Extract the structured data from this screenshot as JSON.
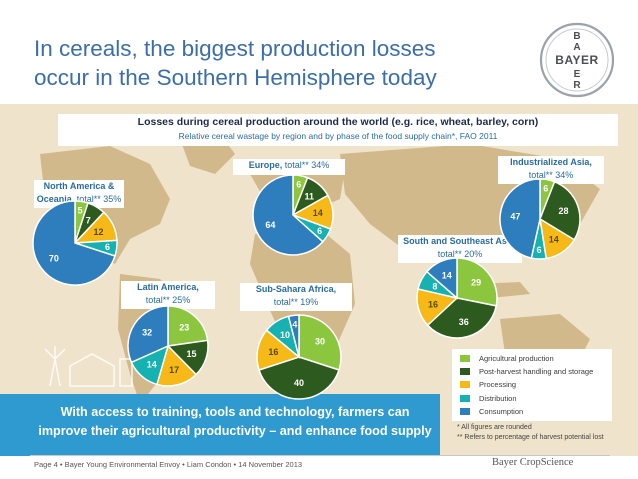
{
  "slide": {
    "title_line1": "In cereals, the biggest production losses",
    "title_line2": "occur in the Southern Hemisphere today",
    "logo_letters": [
      "B",
      "A",
      "Y",
      "E",
      "R"
    ],
    "logo_text": "BAYER",
    "footer_left": "Page 4 • Bayer Young Environmental Envoy • Liam Condon • 14 November 2013",
    "footer_right": "Bayer CropScience",
    "banner_line1": "With access to training, tools and technology, farmers can",
    "banner_line2": "improve their agricultural productivity – and enhance food supply",
    "notes": [
      "* All figures are rounded",
      "** Refers to percentage of harvest potential lost"
    ],
    "colors": {
      "title": "#3c6ea8",
      "map_bg": "#efe3cb",
      "land": "#d2b98c",
      "banner": "#2e9ad0"
    }
  },
  "chart_data": {
    "type": "pie",
    "title": "Losses during cereal production around the world (e.g. rice, wheat, barley, corn)",
    "subtitle": "Relative cereal wastage by region and by phase of the food supply chain*, FAO 2011",
    "legend_position": "bottom-right",
    "categories": [
      "Agricultural production",
      "Post-harvest handling and storage",
      "Processing",
      "Distribution",
      "Consumption"
    ],
    "category_colors": [
      "#8cc63f",
      "#2d5a1e",
      "#f6b918",
      "#16b1b1",
      "#2e7ebd"
    ],
    "regions": [
      {
        "id": "north-america",
        "name": "North America &",
        "name2": "Oceania,",
        "total": "total** 35%",
        "values": [
          5,
          7,
          12,
          6,
          70
        ]
      },
      {
        "id": "europe",
        "name": "Europe,",
        "name2": "",
        "total": "total** 34%",
        "values": [
          6,
          11,
          14,
          6,
          64
        ]
      },
      {
        "id": "industrialized-asia",
        "name": "Industrialized Asia,",
        "name2": "",
        "total": "total** 34%",
        "values": [
          6,
          28,
          14,
          6,
          47
        ]
      },
      {
        "id": "latin-america",
        "name": "Latin America,",
        "name2": "",
        "total": "total** 25%",
        "values": [
          23,
          15,
          17,
          14,
          32
        ]
      },
      {
        "id": "sub-sahara-africa",
        "name": "Sub-Sahara Africa,",
        "name2": "",
        "total": "total** 19%",
        "values": [
          30,
          40,
          16,
          10,
          4
        ]
      },
      {
        "id": "south-southeast-asia",
        "name": "South and Southeast Asia,",
        "name2": "",
        "total": "total** 20%",
        "values": [
          29,
          36,
          16,
          8,
          14
        ]
      }
    ]
  }
}
